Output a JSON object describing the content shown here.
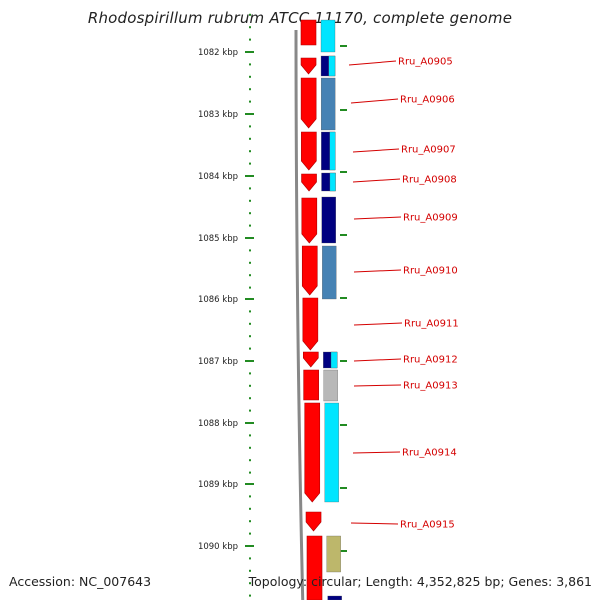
{
  "title": "Rhodospirillum rubrum ATCC 11170, complete genome",
  "accession": "Accession: NC_007643",
  "summary": "Topology: circular; Length: 4,352,825 bp; Genes: 3,861",
  "colors": {
    "forward_cds": "#ff0000",
    "backbone": "#888888",
    "tick": "#228b22",
    "label": "#d40000",
    "navy": "#000080",
    "steelblue": "#4682b4",
    "cyan": "#00e5ff",
    "gray": "#b8b8b8",
    "khaki": "#bdb76b"
  },
  "ticks": [
    {
      "label": "1082 kbp"
    },
    {
      "label": "1083 kbp"
    },
    {
      "label": "1084 kbp"
    },
    {
      "label": "1085 kbp"
    },
    {
      "label": "1086 kbp"
    },
    {
      "label": "1087 kbp"
    },
    {
      "label": "1088 kbp"
    },
    {
      "label": "1089 kbp"
    },
    {
      "label": "1090 kbp"
    }
  ],
  "genes": [
    {
      "name": "Rru_A0905"
    },
    {
      "name": "Rru_A0906"
    },
    {
      "name": "Rru_A0907"
    },
    {
      "name": "Rru_A0908"
    },
    {
      "name": "Rru_A0909"
    },
    {
      "name": "Rru_A0910"
    },
    {
      "name": "Rru_A0911"
    },
    {
      "name": "Rru_A0912"
    },
    {
      "name": "Rru_A0913"
    },
    {
      "name": "Rru_A0914"
    },
    {
      "name": "Rru_A0915"
    }
  ]
}
